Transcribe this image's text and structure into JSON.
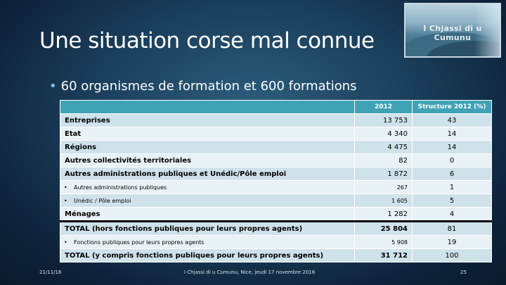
{
  "slide": {
    "title": "Une situation corse mal connue",
    "logo_text": "I Chjassi di u Cumunu",
    "bullet": "60 organismes de formation et 600 formations"
  },
  "table": {
    "headers": [
      "",
      "2012",
      "Structure 2012 (%)"
    ],
    "rows": [
      {
        "label": "Entreprises",
        "value": "13 753",
        "pct": "43",
        "sub": false
      },
      {
        "label": "Etat",
        "value": "4 340",
        "pct": "14",
        "sub": false
      },
      {
        "label": "Régions",
        "value": "4 475",
        "pct": "14",
        "sub": false
      },
      {
        "label": "Autres collectivités territoriales",
        "value": "82",
        "pct": "0",
        "sub": false
      },
      {
        "label": "Autres administrations publiques et Unédic/Pôle emploi",
        "value": "1 872",
        "pct": "6",
        "sub": false
      },
      {
        "label": "Autres administrations publiques",
        "value": "267",
        "pct": "1",
        "sub": true
      },
      {
        "label": "Unédic / Pôle emploi",
        "value": "1 605",
        "pct": "5",
        "sub": true
      },
      {
        "label": "Ménages",
        "value": "1 282",
        "pct": "4",
        "sub": false
      },
      {
        "label": "TOTAL (hors fonctions publiques pour leurs propres agents)",
        "value": "25 804",
        "pct": "81",
        "sub": false
      },
      {
        "label": "Fonctions publiques pour leurs propres agents",
        "value": "5 908",
        "pct": "19",
        "sub": true
      },
      {
        "label": "TOTAL (y compris fonctions publiques pour leurs propres agents)",
        "value": "31 712",
        "pct": "100",
        "sub": false
      }
    ]
  },
  "footer": {
    "date": "21/11/16",
    "center": "I Chjassi di u Cumunu, Nice, jeudi 17  novembre 2016",
    "page": "25"
  }
}
